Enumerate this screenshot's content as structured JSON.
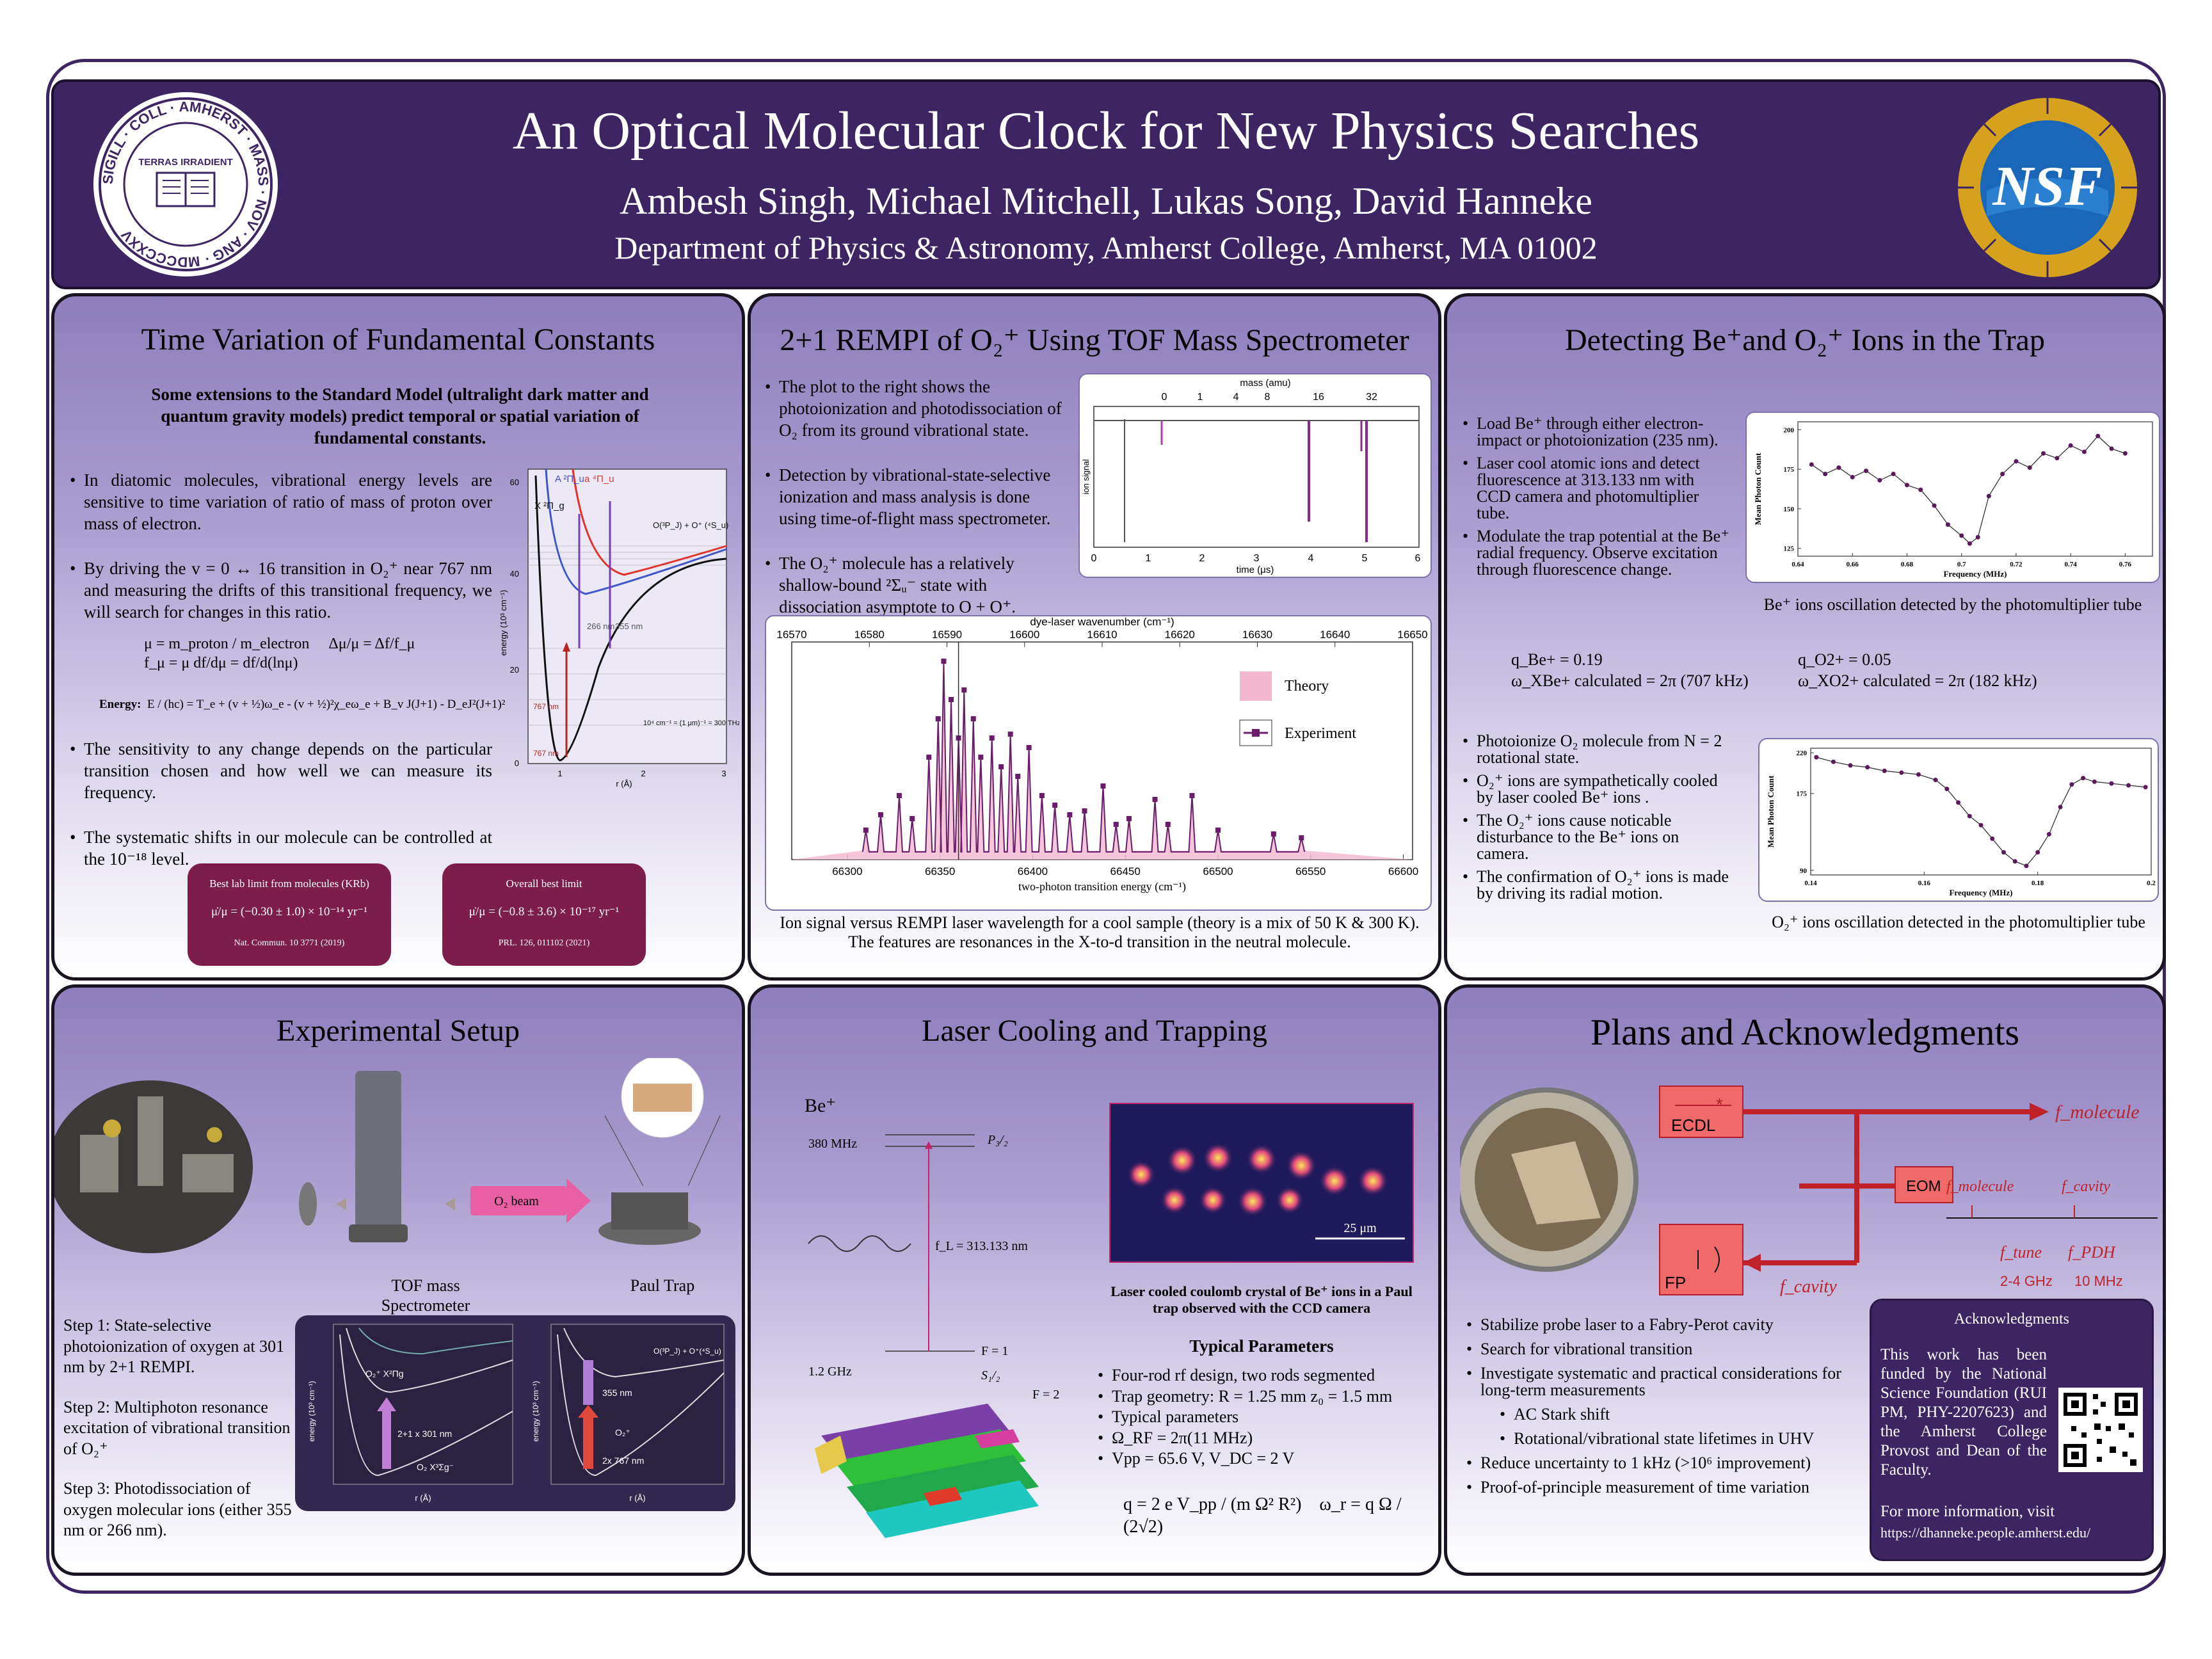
{
  "header": {
    "title": "An Optical Molecular Clock for New Physics Searches",
    "authors": "Ambesh Singh, Michael Mitchell, Lukas Song, David Hanneke",
    "affiliation": "Department of Physics & Astronomy, Amherst College, Amherst, MA 01002",
    "seal_text": "SIGILL · COLL · AMHERST · MASS · NOV · ANG · MDCCCXXV",
    "seal_motto": "TERRAS IRRADIENT",
    "nsf_label": "NSF"
  },
  "panel1": {
    "title": "Time Variation of Fundamental Constants",
    "intro": "Some extensions to the Standard Model (ultralight dark matter and quantum gravity models) predict temporal or spatial variation of fundamental constants.",
    "bullets": [
      "In diatomic molecules, vibrational energy levels are sensitive to time variation of ratio of mass of proton over mass of electron.",
      "By driving the v = 0 ↔ 16 transition in O₂⁺ near 767 nm and measuring the drifts of this transitional frequency, we will search for changes in this ratio."
    ],
    "bullets2": [
      "The sensitivity to any change depends on the particular transition chosen and how well we can measure its frequency.",
      "The systematic shifts in our molecule can be controlled at the 10⁻¹⁸ level."
    ],
    "eq_mu": "μ = m_proton / m_electron",
    "eq_delta": "Δμ/μ = Δf/f_μ",
    "eq_fmu": "f_μ = μ df/dμ = df/d(lnμ)",
    "energy_label": "Energy:",
    "energy_eq": "E / (hc) = T_e + (v + ½)ω_e - (v + ½)²χ_eω_e + B_v J(J+1) - D_eJ²(J+1)²",
    "card1_title": "Best lab limit from molecules (KRb)",
    "card1_eq": "μ̇/μ = (−0.30 ± 1.0) × 10⁻¹⁴ yr⁻¹",
    "card1_ref": "Nat. Commun. 10 3771 (2019)",
    "card2_title": "Overall best limit",
    "card2_eq": "μ̇/μ = (−0.8 ± 3.6) × 10⁻¹⁷ yr⁻¹",
    "card2_ref": "PRL. 126, 011102 (2021)",
    "pot_labels": {
      "ylabel": "energy (10³ cm⁻¹)",
      "xlabel": "r (Å)",
      "state_X": "X ²Π_g",
      "state_A": "A ²Π_u",
      "state_a": "a ⁴Π_u",
      "asym": "O(³P_J) + O⁺ (⁴S_u)",
      "lbl_266": "266 nm",
      "lbl_355": "355 nm",
      "lbl_767a": "767 nm",
      "lbl_767b": "767 nm",
      "note": "10⁴ cm⁻¹ = (1 μm)⁻¹ = 300 THz/c",
      "yticks": [
        "0",
        "20",
        "40",
        "60"
      ],
      "xticks": [
        "1",
        "2",
        "3"
      ]
    }
  },
  "panel2": {
    "title": "2+1 REMPI of O₂⁺ Using TOF Mass Spectrometer",
    "bullets": [
      "The plot to the right shows the photoionization and photodissociation of O₂ from its ground vibrational state.",
      "Detection by vibrational-state-selective ionization and mass analysis is done using time-of-flight mass spectrometer.",
      "The O₂⁺ molecule has a relatively shallow-bound ²Σᵤ⁻ state with dissociation asymptote to O + O⁺."
    ],
    "caption": "Ion signal versus REMPI laser wavelength for a cool sample (theory is a mix of 50 K & 300 K). The features are resonances in the X-to-d transition in the neutral molecule.",
    "tof_labels": {
      "top_axis": "mass (amu)",
      "mass_ticks": [
        "0",
        "1",
        "4",
        "8",
        "16",
        "32"
      ],
      "bottom_axis": "time (μs)",
      "time_ticks": [
        "0",
        "1",
        "2",
        "3",
        "4",
        "5",
        "6"
      ],
      "ylabel": "ion signal"
    }
  },
  "chart_data": [
    {
      "type": "line",
      "title": "",
      "xlabel": "two-photon transition energy (cm⁻¹)",
      "x2label": "dye-laser wavenumber (cm⁻¹)",
      "ylabel": "",
      "xlim": [
        66270,
        66605
      ],
      "x_ticks": [
        66300,
        66350,
        66400,
        66450,
        66500,
        66550,
        66600
      ],
      "x2_ticks": [
        16570,
        16580,
        16590,
        16600,
        16610,
        16620,
        16630,
        16640,
        16650
      ],
      "legend": [
        "Theory",
        "Experiment"
      ],
      "legend_position": "right",
      "peaks": {
        "x": [
          66310,
          66318,
          66328,
          66335,
          66344,
          66349,
          66352,
          66356,
          66360,
          66363,
          66368,
          66372,
          66378,
          66383,
          66388,
          66392,
          66398,
          66405,
          66412,
          66420,
          66428,
          66438,
          66445,
          66452,
          66466,
          66473,
          66486,
          66500,
          66530,
          66545
        ],
        "y": [
          0.12,
          0.2,
          0.3,
          0.18,
          0.5,
          0.7,
          1.0,
          0.8,
          0.6,
          0.85,
          0.7,
          0.5,
          0.6,
          0.45,
          0.62,
          0.4,
          0.55,
          0.3,
          0.25,
          0.2,
          0.22,
          0.35,
          0.15,
          0.18,
          0.28,
          0.15,
          0.3,
          0.12,
          0.1,
          0.08
        ]
      }
    },
    {
      "type": "scatter",
      "title": "",
      "xlabel": "Frequency (MHz)",
      "ylabel": "Mean Photon Count",
      "xlim": [
        0.64,
        0.77
      ],
      "ylim": [
        120,
        205
      ],
      "x_ticks": [
        0.64,
        0.66,
        0.68,
        0.7,
        0.72,
        0.74,
        0.76
      ],
      "y_ticks": [
        125,
        150,
        175,
        200
      ],
      "x": [
        0.645,
        0.65,
        0.655,
        0.66,
        0.665,
        0.67,
        0.675,
        0.68,
        0.685,
        0.69,
        0.695,
        0.7,
        0.703,
        0.706,
        0.71,
        0.715,
        0.72,
        0.725,
        0.73,
        0.735,
        0.74,
        0.745,
        0.75,
        0.755,
        0.76
      ],
      "y": [
        178,
        172,
        176,
        170,
        174,
        168,
        172,
        165,
        162,
        152,
        140,
        133,
        128,
        132,
        158,
        172,
        180,
        176,
        185,
        182,
        190,
        186,
        196,
        188,
        185
      ]
    },
    {
      "type": "scatter",
      "title": "",
      "xlabel": "Frequency (MHz)",
      "ylabel": "Mean Photon Count",
      "xlim": [
        0.14,
        0.2
      ],
      "ylim": [
        85,
        225
      ],
      "x_ticks": [
        0.14,
        0.16,
        0.18,
        0.2
      ],
      "y_ticks": [
        90,
        175,
        220
      ],
      "x": [
        0.141,
        0.144,
        0.147,
        0.15,
        0.153,
        0.156,
        0.159,
        0.162,
        0.164,
        0.166,
        0.168,
        0.17,
        0.172,
        0.174,
        0.176,
        0.178,
        0.18,
        0.182,
        0.184,
        0.186,
        0.188,
        0.19,
        0.193,
        0.196,
        0.199
      ],
      "y": [
        215,
        210,
        206,
        204,
        200,
        198,
        196,
        190,
        180,
        165,
        150,
        140,
        125,
        110,
        100,
        95,
        110,
        130,
        160,
        185,
        192,
        188,
        186,
        184,
        182
      ]
    }
  ],
  "panel3": {
    "title_html_main": "Detecting Be⁺and O₂⁺ Ions in the Trap",
    "bullets": [
      "Load Be⁺ through either electron-impact or photoionization (235 nm).",
      "Laser cool atomic ions and detect fluorescence at 313.133 nm with CCD camera and photomultiplier tube.",
      "Modulate the trap potential at the Be⁺ radial frequency. Observe excitation through fluorescence change."
    ],
    "caption1": "Be⁺ ions oscillation detected by the photomultiplier tube",
    "q_be": "q_Be+ = 0.19",
    "w_be": "ω_XBe+ calculated = 2π (707 kHz)",
    "q_o2": "q_O2+ = 0.05",
    "w_o2": "ω_XO2+ calculated = 2π (182 kHz)",
    "bullets2": [
      "Photoionize O₂ molecule from N = 2 rotational state.",
      "O₂⁺ ions are sympathetically cooled by laser cooled Be⁺ ions .",
      "The O₂⁺ ions cause noticable disturbance to the Be⁺ ions on camera.",
      "The confirmation of O₂⁺ ions is made by driving its radial motion."
    ],
    "caption2": "O₂⁺ ions oscillation detected in the photomultiplier tube"
  },
  "panel4": {
    "title": "Experimental Setup",
    "tof_label": "TOF mass Spectrometer",
    "trap_label": "Paul Trap",
    "beam_label": "O₂ beam",
    "steps": [
      "Step 1: State-selective photoionization of oxygen at 301 nm by 2+1 REMPI.",
      "Step 2: Multiphoton resonance excitation of vibrational transition of O₂⁺",
      "Step 3: Photodissociation of oxygen molecular ions (either 355 nm or 266 nm)."
    ],
    "inset_left": {
      "lbl1": "2+1 x 301 nm",
      "lbl2": "O₂ X³Σg⁻",
      "lbl3": "O₂⁺ X²Πg",
      "xlabel": "r (Å)",
      "ylabel": "energy (10³ cm⁻¹)"
    },
    "inset_right": {
      "lbl1": "355 nm",
      "lbl2": "2x 767 nm",
      "lbl3": "O₂⁺",
      "asym": "O(³P_J) + O⁺(⁴S_u)",
      "xlabel": "r (Å)",
      "ylabel": "energy (10³ cm⁻¹)"
    }
  },
  "panel5": {
    "title": "Laser Cooling and Trapping",
    "ion": "Be⁺",
    "mhz380": "380 MHz",
    "p32": "P₃/₂",
    "fl": "f_L = 313.133 nm",
    "ghz": "1.2 GHz",
    "f1": "F = 1",
    "f2": "F = 2",
    "s12": "S₁/₂",
    "scale": "25 μm",
    "crystal_caption": "Laser cooled coulomb crystal of  Be⁺ ions in a Paul trap observed with the CCD camera",
    "params_title": "Typical Parameters",
    "params": [
      "Four-rod rf design, two rods segmented",
      "Trap geometry: R = 1.25 mm z₀ = 1.5 mm",
      "Typical parameters",
      "Ω_RF = 2π(11 MHz)",
      "Vpp = 65.6 V, V_DC = 2 V"
    ],
    "q_eq": "q = 2 e V_pp / (m Ω² R²)",
    "w_eq": "ω_r = q Ω / (2√2)"
  },
  "panel6": {
    "title": "Plans and Acknowledgments",
    "ecdl": "ECDL",
    "eom": "EOM",
    "fp": "FP",
    "f_molecule": "f_molecule",
    "f_molecule2": "f_molecule",
    "f_cavity": "f_cavity",
    "f_cavity2": "f_cavity",
    "f_tune": "f_tune",
    "f_pdh": "f_PDH",
    "ghz": "2-4 GHz",
    "mhz": "10 MHz",
    "bullets": [
      "Stabilize probe laser to a Fabry-Perot cavity",
      "Search for vibrational transition",
      "Investigate systematic and practical considerations for long-term measurements"
    ],
    "sub_bullets": [
      "AC Stark shift",
      "Rotational/vibrational state lifetimes in UHV"
    ],
    "bullets2": [
      "Reduce uncertainty to 1 kHz (>10⁶ improvement)",
      "Proof-of-principle measurement of time variation"
    ],
    "ack_title": "Acknowledgments",
    "ack_text": "This work has been funded by the National Science Foundation (RUI PM, PHY-2207623) and the Amherst College Provost and Dean of the Faculty.",
    "ack_more": "For more information, visit",
    "ack_url": "https://dhanneke.people.amherst.edu/"
  }
}
